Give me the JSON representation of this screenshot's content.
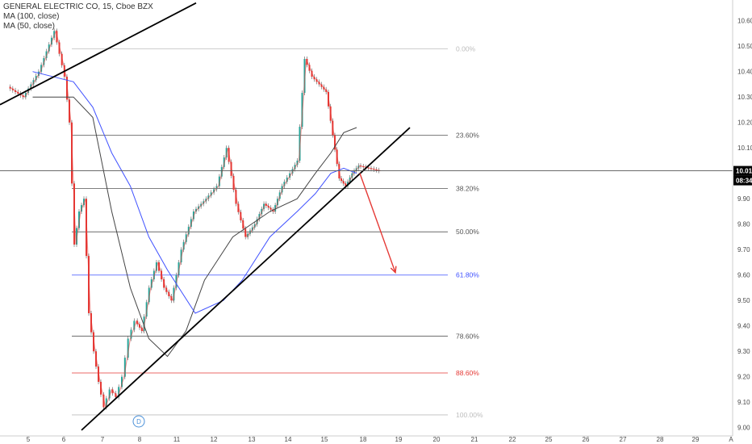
{
  "header": {
    "symbol_line": "GENERAL ELECTRIC CO, 15, Cboe BZX",
    "indicators": [
      "MA (100, close)",
      "MA (50, close)"
    ]
  },
  "colors": {
    "up": "#26a69a",
    "down": "#e53935",
    "bar": "#555555",
    "ma100": "#444444",
    "ma50": "#3f51ff",
    "trendline": "#000000",
    "arrow": "#e53935"
  },
  "chart_data": {
    "type": "line",
    "ylim": [
      8.98,
      10.65
    ],
    "y_ticks": [
      "10.60",
      "10.50",
      "10.40",
      "10.30",
      "10.20",
      "10.10",
      "10.00",
      "9.90",
      "9.80",
      "9.70",
      "9.60",
      "9.50",
      "9.40",
      "9.30",
      "9.20",
      "9.10",
      "9.00"
    ],
    "x_ticks": [
      "5",
      "6",
      "7",
      "8",
      "11",
      "12",
      "13",
      "14",
      "15",
      "18",
      "19",
      "20",
      "21",
      "22",
      "25",
      "26",
      "27",
      "28",
      "29",
      "A"
    ],
    "price_axis": {
      "last_price": "10.01",
      "countdown": "08:34"
    },
    "fibonacci": [
      {
        "label": "0.00%",
        "price": 10.49,
        "color": "#bdbdbd"
      },
      {
        "label": "23.60%",
        "price": 10.15,
        "color": "#555555"
      },
      {
        "label": "38.20%",
        "price": 9.94,
        "color": "#555555"
      },
      {
        "label": "50.00%",
        "price": 9.77,
        "color": "#555555"
      },
      {
        "label": "61.80%",
        "price": 9.6,
        "color": "#3f51ff"
      },
      {
        "label": "78.60%",
        "price": 9.36,
        "color": "#555555"
      },
      {
        "label": "88.60%",
        "price": 9.215,
        "color": "#e53935"
      },
      {
        "label": "100.00%",
        "price": 9.05,
        "color": "#bdbdbd"
      }
    ],
    "event_badge": {
      "label": "D",
      "date": "7"
    },
    "price_path": [
      [
        "5",
        10.34
      ],
      [
        "5",
        10.3
      ],
      [
        "5",
        10.4
      ],
      [
        "5",
        10.56
      ],
      [
        "6",
        10.38
      ],
      [
        "6",
        10.2
      ],
      [
        "6",
        9.72
      ],
      [
        "6",
        9.85
      ],
      [
        "6",
        9.9
      ],
      [
        "6",
        9.45
      ],
      [
        "6",
        9.3
      ],
      [
        "6",
        9.18
      ],
      [
        "7",
        9.08
      ],
      [
        "7",
        9.15
      ],
      [
        "7",
        9.12
      ],
      [
        "7",
        9.2
      ],
      [
        "7",
        9.35
      ],
      [
        "7",
        9.42
      ],
      [
        "8",
        9.38
      ],
      [
        "8",
        9.55
      ],
      [
        "8",
        9.65
      ],
      [
        "8",
        9.55
      ],
      [
        "8",
        9.5
      ],
      [
        "11",
        9.7
      ],
      [
        "11",
        9.85
      ],
      [
        "11",
        9.9
      ],
      [
        "12",
        9.95
      ],
      [
        "12",
        10.1
      ],
      [
        "12",
        9.88
      ],
      [
        "12",
        9.75
      ],
      [
        "13",
        9.8
      ],
      [
        "13",
        9.88
      ],
      [
        "13",
        9.85
      ],
      [
        "13",
        9.95
      ],
      [
        "14",
        10.0
      ],
      [
        "14",
        10.05
      ],
      [
        "14",
        10.45
      ],
      [
        "14",
        10.38
      ],
      [
        "14",
        10.35
      ],
      [
        "15",
        10.32
      ],
      [
        "15",
        10.15
      ],
      [
        "15",
        9.98
      ],
      [
        "15",
        9.95
      ],
      [
        "15",
        10.0
      ],
      [
        "15",
        10.03
      ],
      [
        "18",
        10.01
      ]
    ],
    "ma100_path": [
      [
        "5",
        10.3
      ],
      [
        "6",
        10.3
      ],
      [
        "6",
        10.22
      ],
      [
        "7",
        9.85
      ],
      [
        "7",
        9.55
      ],
      [
        "8",
        9.35
      ],
      [
        "8",
        9.28
      ],
      [
        "11",
        9.38
      ],
      [
        "11",
        9.58
      ],
      [
        "12",
        9.75
      ],
      [
        "13",
        9.85
      ],
      [
        "14",
        9.9
      ],
      [
        "14",
        10.0
      ],
      [
        "15",
        10.08
      ],
      [
        "15",
        10.16
      ],
      [
        "15",
        10.18
      ]
    ],
    "ma50_path": [
      [
        "5",
        10.4
      ],
      [
        "6",
        10.36
      ],
      [
        "6",
        10.26
      ],
      [
        "7",
        10.08
      ],
      [
        "7",
        9.95
      ],
      [
        "8",
        9.75
      ],
      [
        "8",
        9.62
      ],
      [
        "11",
        9.45
      ],
      [
        "12",
        9.5
      ],
      [
        "12",
        9.58
      ],
      [
        "13",
        9.75
      ],
      [
        "14",
        9.85
      ],
      [
        "14",
        9.92
      ],
      [
        "15",
        10.0
      ],
      [
        "15",
        10.02
      ],
      [
        "15",
        10.0
      ]
    ],
    "trendlines": [
      {
        "name": "upper-trendline",
        "from": [
          "5",
          10.27
        ],
        "to": [
          "12",
          10.67
        ]
      },
      {
        "name": "support-trendline",
        "from": [
          "7",
          8.99
        ],
        "to": [
          "15",
          10.18
        ]
      }
    ],
    "forecast_arrow": {
      "from": [
        "15",
        10.0
      ],
      "to": [
        "19",
        9.61
      ]
    }
  }
}
